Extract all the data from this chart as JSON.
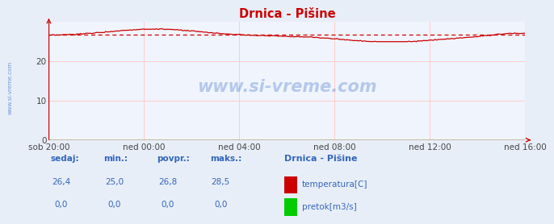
{
  "title": "Drnica - Pišine",
  "title_color": "#cc0000",
  "bg_color": "#e8eef8",
  "plot_bg_color": "#f0f4fc",
  "grid_color": "#ffcccc",
  "border_color": "#cc0000",
  "xlabel_ticks": [
    "sob 20:00",
    "ned 00:00",
    "ned 04:00",
    "ned 08:00",
    "ned 12:00",
    "ned 16:00"
  ],
  "tick_positions": [
    0,
    72,
    144,
    216,
    288,
    360
  ],
  "total_points": 361,
  "ylim": [
    0,
    30
  ],
  "yticks": [
    0,
    10,
    20
  ],
  "temp_avg": 26.8,
  "temp_color": "#cc0000",
  "flow_color": "#00cc00",
  "avg_line_color": "#cc0000",
  "watermark_color": "#4477cc",
  "legend_title": "Drnica - Pišine",
  "legend_label1": "temperatura[C]",
  "legend_label2": "pretok[m3/s]",
  "legend_color": "#3366bb",
  "bottom_labels": [
    "sedaj:",
    "min.:",
    "povpr.:",
    "maks.:"
  ],
  "bottom_vals_temp": [
    "26,4",
    "25,0",
    "26,8",
    "28,5"
  ],
  "bottom_vals_flow": [
    "0,0",
    "0,0",
    "0,0",
    "0,0"
  ],
  "left_watermark": "www.si-vreme.com",
  "watermark_text": "www.si-vreme.com"
}
